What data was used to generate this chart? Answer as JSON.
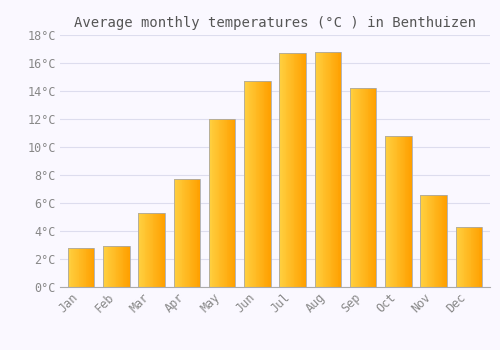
{
  "title": "Average monthly temperatures (°C ) in Benthuizen",
  "months": [
    "Jan",
    "Feb",
    "Mar",
    "Apr",
    "May",
    "Jun",
    "Jul",
    "Aug",
    "Sep",
    "Oct",
    "Nov",
    "Dec"
  ],
  "values": [
    2.8,
    2.9,
    5.3,
    7.7,
    12.0,
    14.7,
    16.7,
    16.8,
    14.2,
    10.8,
    6.6,
    4.3
  ],
  "bar_color_left": "#FFD040",
  "bar_color_right": "#FFA000",
  "bar_edge_color": "#AAAAAA",
  "background_color": "#FAF8FF",
  "grid_color": "#DDDDEE",
  "text_color": "#888888",
  "title_color": "#555555",
  "ylim": [
    0,
    18
  ],
  "yticks": [
    0,
    2,
    4,
    6,
    8,
    10,
    12,
    14,
    16,
    18
  ],
  "ytick_labels": [
    "0°C",
    "2°C",
    "4°C",
    "6°C",
    "8°C",
    "10°C",
    "12°C",
    "14°C",
    "16°C",
    "18°C"
  ],
  "title_fontsize": 10,
  "tick_fontsize": 8.5,
  "bar_width": 0.75,
  "n_gradient_steps": 30
}
